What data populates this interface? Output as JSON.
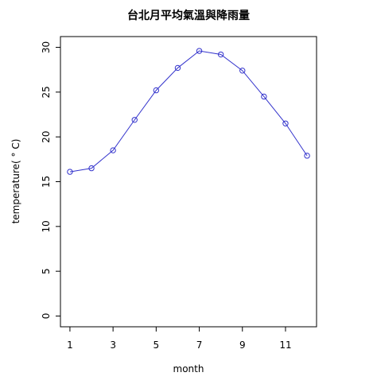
{
  "chart_data": {
    "type": "line",
    "title": "台北月平均氣溫與降雨量",
    "x_label": "month",
    "y_label": "temperature( ° C)",
    "x": [
      1,
      2,
      3,
      4,
      5,
      6,
      7,
      8,
      9,
      10,
      11,
      12
    ],
    "series": [
      {
        "color": "#3333cc",
        "values": [
          16.1,
          16.5,
          18.5,
          21.9,
          25.2,
          27.7,
          29.6,
          29.2,
          27.4,
          24.5,
          21.5,
          17.9
        ]
      }
    ],
    "xlim": [
      0.56,
      12.44
    ],
    "ylim": [
      -1.2,
      31.2
    ],
    "xticks": [
      1,
      3,
      5,
      7,
      9,
      11
    ],
    "yticks": [
      0,
      5,
      10,
      15,
      20,
      25,
      30
    ]
  }
}
